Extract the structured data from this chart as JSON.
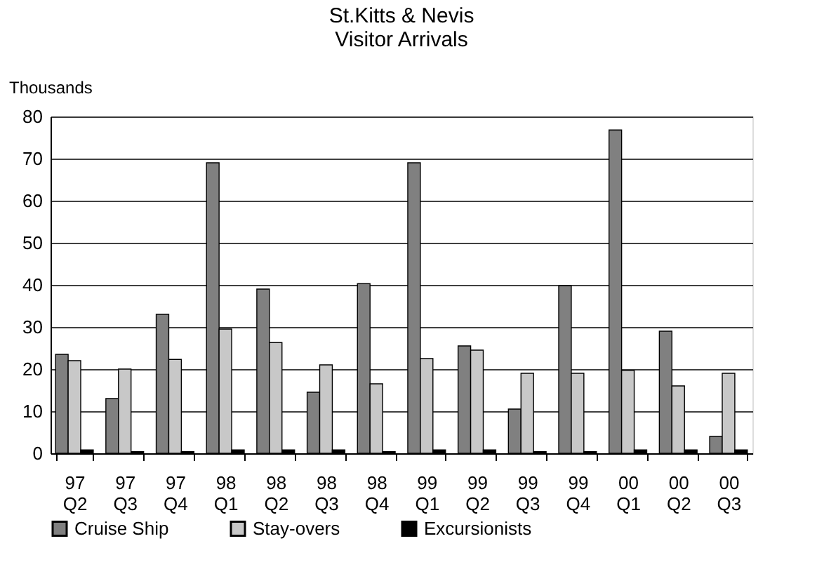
{
  "chart_data": {
    "type": "bar",
    "title": "St.Kitts & Nevis\nVisitor Arrivals",
    "ylabel": "Thousands",
    "categories": [
      "97 Q2",
      "97 Q3",
      "97 Q4",
      "98 Q1",
      "98 Q2",
      "98 Q3",
      "98 Q4",
      "99 Q1",
      "99 Q2",
      "99 Q3",
      "99 Q4",
      "00 Q1",
      "00 Q2",
      "00 Q3"
    ],
    "series": [
      {
        "name": "Cruise Ship",
        "color": "#808080",
        "values": [
          23.5,
          13,
          33,
          69,
          39,
          14.5,
          40.3,
          69,
          25.5,
          10.5,
          39.8,
          76.8,
          29,
          4
        ]
      },
      {
        "name": "Stay-overs",
        "color": "#c8c8c8",
        "values": [
          22,
          20,
          22.3,
          29.5,
          26.3,
          21,
          16.5,
          22.5,
          24.5,
          19,
          19,
          19.7,
          16,
          19
        ]
      },
      {
        "name": "Excursionists",
        "color": "#000000",
        "values": [
          0.8,
          0.4,
          0.4,
          0.8,
          0.8,
          0.8,
          0.4,
          0.8,
          0.8,
          0.4,
          0.4,
          0.8,
          0.8,
          0.8
        ]
      }
    ],
    "ylim": [
      0,
      80
    ],
    "yticks": [
      0,
      10,
      20,
      30,
      40,
      50,
      60,
      70,
      80
    ],
    "grid": "y",
    "legend": "bottom"
  }
}
